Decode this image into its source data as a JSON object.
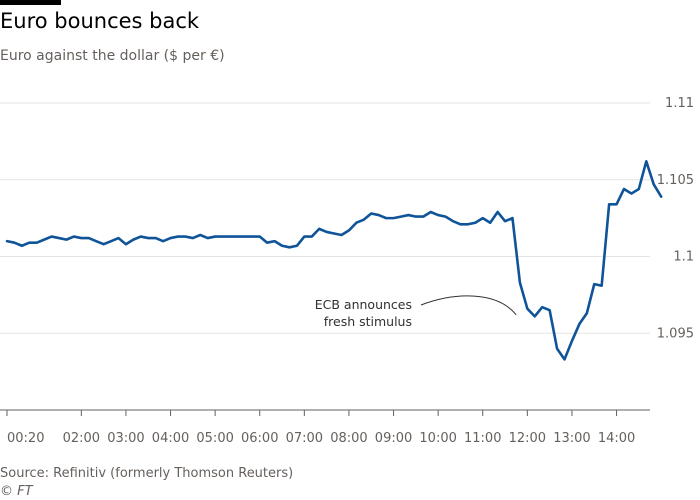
{
  "header": {
    "title": "Euro bounces back",
    "subtitle": "Euro against the dollar ($ per €)"
  },
  "footer": {
    "source": "Source: Refinitiv (formerly Thomson Reuters)",
    "copyright": "© FT"
  },
  "colors": {
    "line": "#0f5499",
    "grid": "#e6e3e0",
    "axis": "#66605c",
    "annotation_connector": "#33302e"
  },
  "chart_data": {
    "type": "line",
    "title": "Euro bounces back",
    "subtitle": "Euro against the dollar ($ per €)",
    "xlabel": "",
    "ylabel": "",
    "grid": true,
    "y_axis_side": "right",
    "ylim": [
      1.09,
      1.11
    ],
    "yticks": [
      1.095,
      1.1,
      1.105,
      1.11
    ],
    "ytick_labels": [
      "1.095",
      "1.1",
      "1.105",
      "1.11"
    ],
    "xlim": [
      "00:20",
      "14:45"
    ],
    "xtick_labels": [
      "00:20",
      "02:00",
      "03:00",
      "04:00",
      "05:00",
      "06:00",
      "07:00",
      "08:00",
      "09:00",
      "10:00",
      "11:00",
      "12:00",
      "13:00",
      "14:00"
    ],
    "xticks": [
      "00:20",
      "02:00",
      "03:00",
      "04:00",
      "05:00",
      "06:00",
      "07:00",
      "08:00",
      "09:00",
      "10:00",
      "11:00",
      "12:00",
      "13:00",
      "14:00"
    ],
    "annotations": [
      {
        "text": [
          "ECB announces",
          "fresh stimulus"
        ],
        "x": "11:45",
        "y": 1.0962
      }
    ],
    "series": [
      {
        "x": [
          "00:20",
          "00:30",
          "00:40",
          "00:50",
          "01:00",
          "01:10",
          "01:20",
          "01:30",
          "01:40",
          "01:50",
          "02:00",
          "02:10",
          "02:20",
          "02:30",
          "02:40",
          "02:50",
          "03:00",
          "03:10",
          "03:20",
          "03:30",
          "03:40",
          "03:50",
          "04:00",
          "04:10",
          "04:20",
          "04:30",
          "04:40",
          "04:50",
          "05:00",
          "05:10",
          "05:20",
          "05:30",
          "05:40",
          "05:50",
          "06:00",
          "06:10",
          "06:20",
          "06:30",
          "06:40",
          "06:50",
          "07:00",
          "07:10",
          "07:20",
          "07:30",
          "07:40",
          "07:50",
          "08:00",
          "08:10",
          "08:20",
          "08:30",
          "08:40",
          "08:50",
          "09:00",
          "09:10",
          "09:20",
          "09:30",
          "09:40",
          "09:50",
          "10:00",
          "10:10",
          "10:20",
          "10:30",
          "10:40",
          "10:50",
          "11:00",
          "11:10",
          "11:20",
          "11:30",
          "11:40",
          "11:50",
          "12:00",
          "12:10",
          "12:20",
          "12:30",
          "12:40",
          "12:50",
          "13:00",
          "13:10",
          "13:20",
          "13:30",
          "13:40",
          "13:50",
          "14:00",
          "14:10",
          "14:20",
          "14:30",
          "14:40",
          "14:50",
          "15:00"
        ],
        "values": [
          1.101,
          1.1009,
          1.1007,
          1.1009,
          1.1009,
          1.1011,
          1.1013,
          1.1012,
          1.1011,
          1.1013,
          1.1012,
          1.1012,
          1.101,
          1.1008,
          1.101,
          1.1012,
          1.1008,
          1.1011,
          1.1013,
          1.1012,
          1.1012,
          1.101,
          1.1012,
          1.1013,
          1.1013,
          1.1012,
          1.1014,
          1.1012,
          1.1013,
          1.1013,
          1.1013,
          1.1013,
          1.1013,
          1.1013,
          1.1013,
          1.1009,
          1.101,
          1.1007,
          1.1006,
          1.1007,
          1.1013,
          1.1013,
          1.1018,
          1.1016,
          1.1015,
          1.1014,
          1.1017,
          1.1022,
          1.1024,
          1.1028,
          1.1027,
          1.1025,
          1.1025,
          1.1026,
          1.1027,
          1.1026,
          1.1026,
          1.1029,
          1.1027,
          1.1026,
          1.1023,
          1.1021,
          1.1021,
          1.1022,
          1.1025,
          1.1022,
          1.1029,
          1.1023,
          1.1025,
          1.0983,
          1.0966,
          1.0961,
          1.0967,
          1.0965,
          1.094,
          1.0933,
          1.0945,
          1.0956,
          1.0963,
          1.0982,
          1.0981,
          1.1034,
          1.1034,
          1.1044,
          1.1041,
          1.1044,
          1.1062,
          1.1047,
          1.1039
        ]
      }
    ]
  }
}
